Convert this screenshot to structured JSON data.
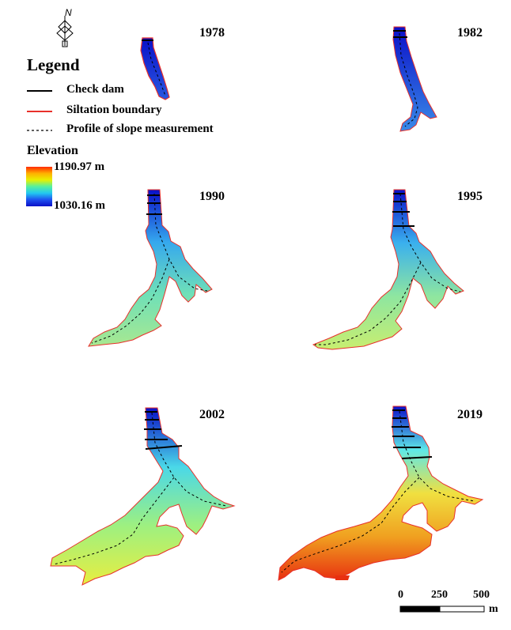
{
  "compass": {
    "letter": "N",
    "icon": "north-arrow-icon"
  },
  "legend": {
    "title": "Legend",
    "items": [
      {
        "label": "Check dam",
        "symbol": "solid-black-line",
        "color": "#000000"
      },
      {
        "label": "Siltation boundary",
        "symbol": "solid-red-line",
        "color": "#e8302a"
      },
      {
        "label": "Profile of slope measurement",
        "symbol": "dashed-black-line",
        "color": "#000000"
      }
    ]
  },
  "elevation": {
    "title": "Elevation",
    "max_label": "1190.97 m",
    "min_label": "1030.16 m",
    "ramp_colors": [
      "#ff2a00",
      "#ffb000",
      "#e8f000",
      "#55f0a0",
      "#22c8f0",
      "#1e50f0",
      "#0a10c8"
    ]
  },
  "panels": [
    {
      "year": "1978",
      "dams": 1,
      "fill": [
        "#0a10c8",
        "#2a58e0"
      ]
    },
    {
      "year": "1982",
      "dams": 2,
      "fill": [
        "#0a10c8",
        "#3a8ae8"
      ]
    },
    {
      "year": "1990",
      "dams": 3,
      "fill": [
        "#0a10c8",
        "#35a8ee",
        "#6fe0b8",
        "#a8e890"
      ]
    },
    {
      "year": "1995",
      "dams": 4,
      "fill": [
        "#0a10c8",
        "#3ab0ee",
        "#8ee6a0",
        "#c8ee70"
      ]
    },
    {
      "year": "2002",
      "dams": 5,
      "fill": [
        "#0a10c8",
        "#4ad8e8",
        "#9ef080",
        "#e8ee40"
      ]
    },
    {
      "year": "2019",
      "dams": 6,
      "fill": [
        "#0a10c8",
        "#5ee8e8",
        "#f0e040",
        "#f0a020",
        "#e83010"
      ]
    }
  ],
  "scalebar": {
    "ticks": [
      "0",
      "250",
      "500"
    ],
    "unit": "m"
  }
}
